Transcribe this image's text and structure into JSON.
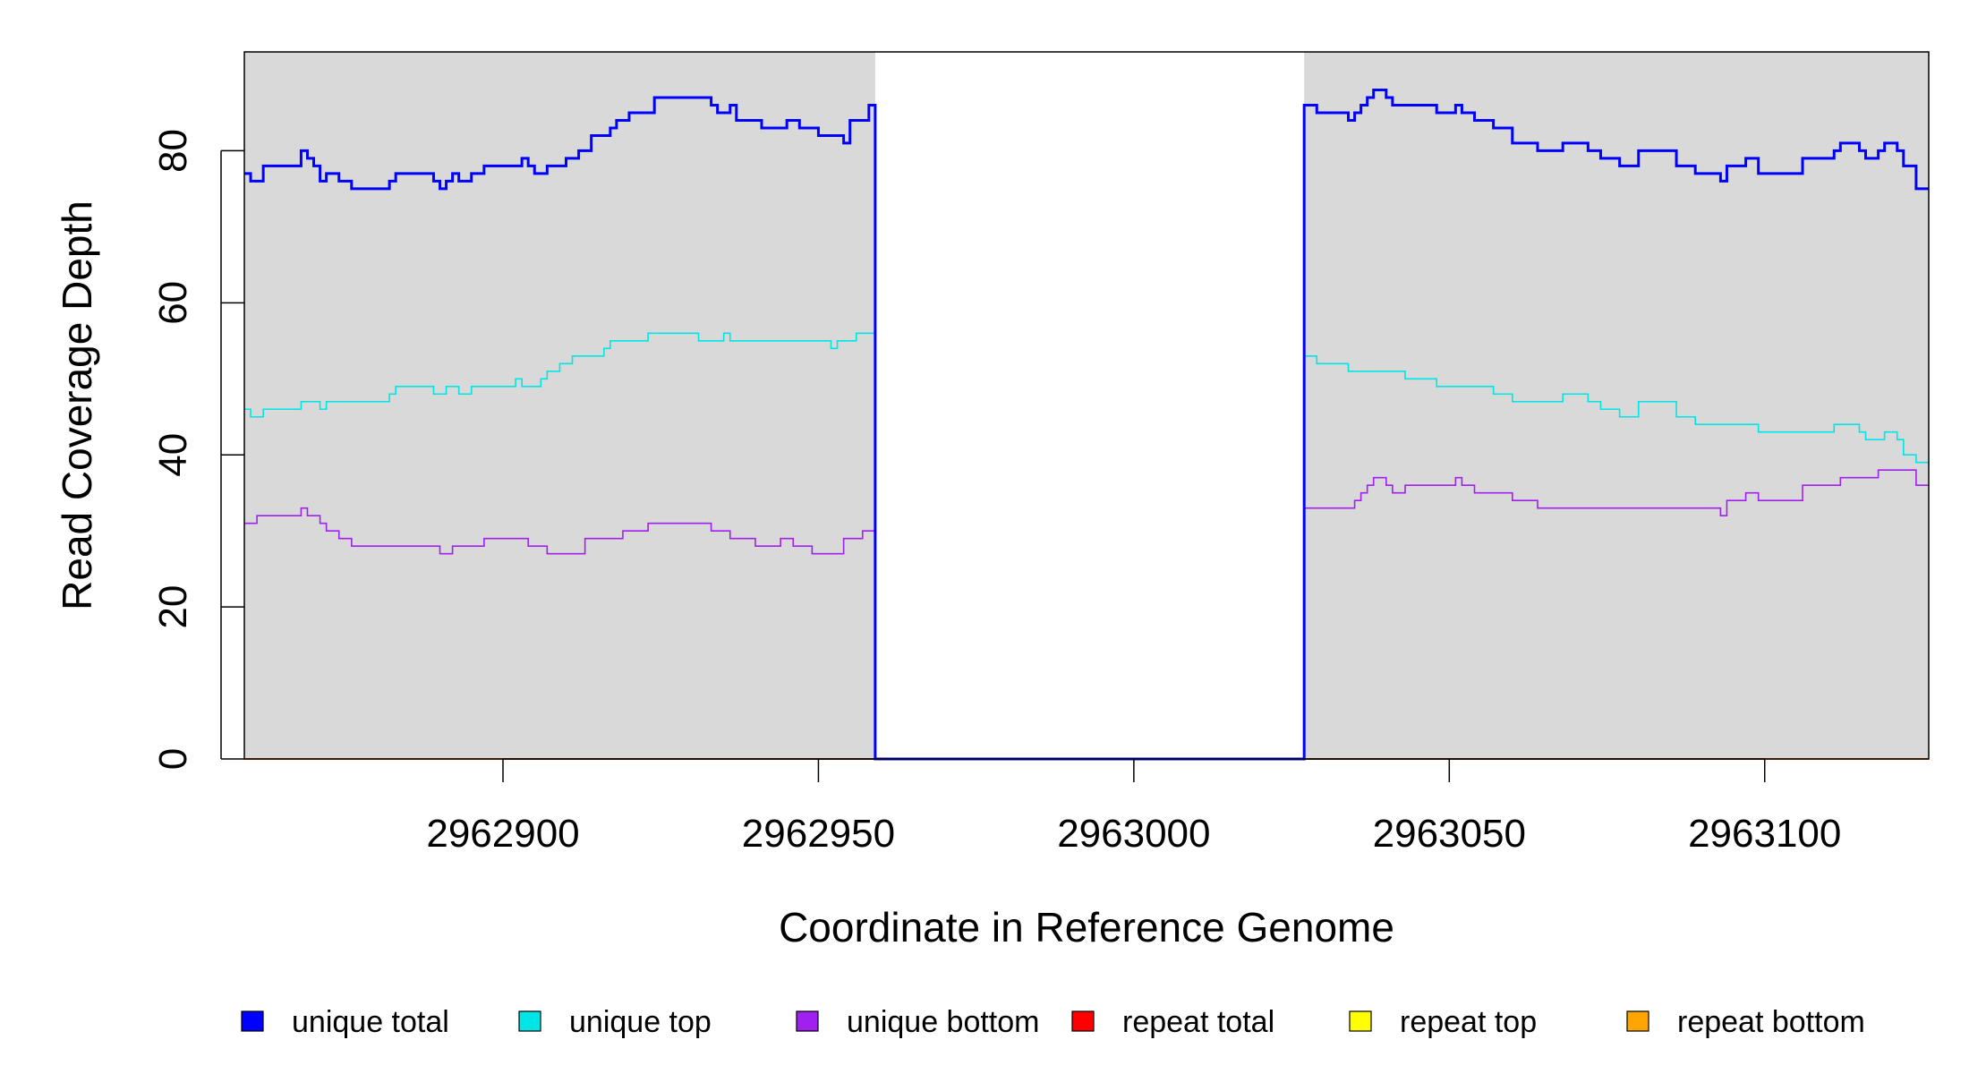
{
  "chart_data": {
    "type": "line",
    "xlabel": "Coordinate in Reference Genome",
    "ylabel": "Read Coverage Depth",
    "xlim": [
      2962859,
      2963126
    ],
    "ylim": [
      0,
      93
    ],
    "x_ticks": [
      2962900,
      2962950,
      2963000,
      2963050,
      2963100
    ],
    "x_tick_labels": [
      "2962900",
      "2962950",
      "2963000",
      "2963050",
      "2963100"
    ],
    "y_ticks": [
      0,
      20,
      40,
      60,
      80
    ],
    "y_tick_labels": [
      "0",
      "20",
      "40",
      "60",
      "80"
    ],
    "shaded_regions": [
      [
        2962859,
        2962959
      ],
      [
        2963027,
        2963126
      ]
    ],
    "shade_color": "#d9d9d9",
    "grid": false,
    "legend_position": "bottom",
    "series": [
      {
        "name": "unique total",
        "color": "#0000ff",
        "steps": [
          [
            2962859,
            77
          ],
          [
            2962860,
            76
          ],
          [
            2962862,
            77
          ],
          [
            2962862,
            78
          ],
          [
            2962868,
            80
          ],
          [
            2962869,
            79
          ],
          [
            2962870,
            78
          ],
          [
            2962871,
            76
          ],
          [
            2962872,
            77
          ],
          [
            2962874,
            76
          ],
          [
            2962876,
            75
          ],
          [
            2962882,
            76
          ],
          [
            2962883,
            77
          ],
          [
            2962889,
            76
          ],
          [
            2962890,
            75
          ],
          [
            2962891,
            76
          ],
          [
            2962892,
            77
          ],
          [
            2962893,
            76
          ],
          [
            2962895,
            77
          ],
          [
            2962897,
            78
          ],
          [
            2962900,
            78
          ],
          [
            2962903,
            79
          ],
          [
            2962904,
            78
          ],
          [
            2962905,
            77
          ],
          [
            2962907,
            78
          ],
          [
            2962910,
            79
          ],
          [
            2962912,
            80
          ],
          [
            2962914,
            82
          ],
          [
            2962917,
            83
          ],
          [
            2962918,
            84
          ],
          [
            2962920,
            85
          ],
          [
            2962924,
            87
          ],
          [
            2962933,
            86
          ],
          [
            2962934,
            85
          ],
          [
            2962936,
            86
          ],
          [
            2962937,
            84
          ],
          [
            2962941,
            83
          ],
          [
            2962945,
            84
          ],
          [
            2962947,
            83
          ],
          [
            2962950,
            82
          ],
          [
            2962954,
            81
          ],
          [
            2962955,
            84
          ],
          [
            2962958,
            86
          ],
          [
            2962959,
            0
          ],
          [
            2963027,
            86
          ],
          [
            2963029,
            85
          ],
          [
            2963034,
            84
          ],
          [
            2963035,
            85
          ],
          [
            2963036,
            86
          ],
          [
            2963037,
            87
          ],
          [
            2963038,
            88
          ],
          [
            2963040,
            87
          ],
          [
            2963041,
            86
          ],
          [
            2963048,
            85
          ],
          [
            2963051,
            86
          ],
          [
            2963052,
            85
          ],
          [
            2963054,
            84
          ],
          [
            2963057,
            83
          ],
          [
            2963060,
            81
          ],
          [
            2963064,
            80
          ],
          [
            2963068,
            81
          ],
          [
            2963072,
            80
          ],
          [
            2963074,
            79
          ],
          [
            2963077,
            78
          ],
          [
            2963080,
            80
          ],
          [
            2963086,
            78
          ],
          [
            2963089,
            77
          ],
          [
            2963093,
            76
          ],
          [
            2963094,
            78
          ],
          [
            2963097,
            79
          ],
          [
            2963099,
            77
          ],
          [
            2963106,
            79
          ],
          [
            2963111,
            80
          ],
          [
            2963112,
            81
          ],
          [
            2963115,
            80
          ],
          [
            2963116,
            79
          ],
          [
            2963118,
            80
          ],
          [
            2963119,
            81
          ],
          [
            2963121,
            80
          ],
          [
            2963122,
            78
          ],
          [
            2963124,
            75
          ]
        ]
      },
      {
        "name": "unique top",
        "color": "#00e5e5",
        "steps": [
          [
            2962859,
            46
          ],
          [
            2962860,
            45
          ],
          [
            2962862,
            46
          ],
          [
            2962868,
            47
          ],
          [
            2962871,
            46
          ],
          [
            2962872,
            47
          ],
          [
            2962882,
            48
          ],
          [
            2962883,
            49
          ],
          [
            2962889,
            48
          ],
          [
            2962891,
            49
          ],
          [
            2962893,
            48
          ],
          [
            2962895,
            49
          ],
          [
            2962902,
            50
          ],
          [
            2962903,
            49
          ],
          [
            2962906,
            50
          ],
          [
            2962907,
            51
          ],
          [
            2962909,
            52
          ],
          [
            2962911,
            53
          ],
          [
            2962916,
            54
          ],
          [
            2962917,
            55
          ],
          [
            2962923,
            56
          ],
          [
            2962931,
            55
          ],
          [
            2962935,
            56
          ],
          [
            2962936,
            55
          ],
          [
            2962952,
            54
          ],
          [
            2962953,
            55
          ],
          [
            2962956,
            56
          ],
          [
            2962958,
            56
          ],
          [
            2962959,
            0
          ],
          [
            2963027,
            53
          ],
          [
            2963029,
            52
          ],
          [
            2963034,
            51
          ],
          [
            2963043,
            50
          ],
          [
            2963048,
            49
          ],
          [
            2963057,
            48
          ],
          [
            2963060,
            47
          ],
          [
            2963068,
            48
          ],
          [
            2963072,
            47
          ],
          [
            2963074,
            46
          ],
          [
            2963077,
            45
          ],
          [
            2963080,
            47
          ],
          [
            2963086,
            45
          ],
          [
            2963089,
            44
          ],
          [
            2963099,
            43
          ],
          [
            2963111,
            44
          ],
          [
            2963115,
            43
          ],
          [
            2963116,
            42
          ],
          [
            2963119,
            43
          ],
          [
            2963121,
            42
          ],
          [
            2963122,
            40
          ],
          [
            2963124,
            39
          ]
        ]
      },
      {
        "name": "unique bottom",
        "color": "#a020f0",
        "steps": [
          [
            2962859,
            31
          ],
          [
            2962861,
            32
          ],
          [
            2962868,
            33
          ],
          [
            2962869,
            32
          ],
          [
            2962871,
            31
          ],
          [
            2962872,
            30
          ],
          [
            2962874,
            29
          ],
          [
            2962876,
            28
          ],
          [
            2962890,
            27
          ],
          [
            2962892,
            28
          ],
          [
            2962897,
            29
          ],
          [
            2962904,
            28
          ],
          [
            2962907,
            27
          ],
          [
            2962913,
            29
          ],
          [
            2962919,
            30
          ],
          [
            2962923,
            31
          ],
          [
            2962933,
            30
          ],
          [
            2962936,
            29
          ],
          [
            2962940,
            28
          ],
          [
            2962944,
            29
          ],
          [
            2962946,
            28
          ],
          [
            2962949,
            27
          ],
          [
            2962954,
            29
          ],
          [
            2962957,
            30
          ],
          [
            2962959,
            0
          ],
          [
            2963027,
            33
          ],
          [
            2963035,
            34
          ],
          [
            2963036,
            35
          ],
          [
            2963037,
            36
          ],
          [
            2963038,
            37
          ],
          [
            2963040,
            36
          ],
          [
            2963041,
            35
          ],
          [
            2963043,
            36
          ],
          [
            2963051,
            37
          ],
          [
            2963052,
            36
          ],
          [
            2963054,
            35
          ],
          [
            2963060,
            34
          ],
          [
            2963064,
            33
          ],
          [
            2963093,
            32
          ],
          [
            2963094,
            34
          ],
          [
            2963097,
            35
          ],
          [
            2963099,
            34
          ],
          [
            2963106,
            36
          ],
          [
            2963112,
            37
          ],
          [
            2963118,
            38
          ],
          [
            2963124,
            36
          ]
        ]
      },
      {
        "name": "repeat total",
        "color": "#ff0000",
        "steps": [
          [
            2962859,
            0
          ]
        ]
      },
      {
        "name": "repeat top",
        "color": "#ffff00",
        "steps": [
          [
            2962859,
            0
          ]
        ]
      },
      {
        "name": "repeat bottom",
        "color": "#ffa500",
        "steps": [
          [
            2962859,
            0
          ]
        ]
      }
    ]
  }
}
